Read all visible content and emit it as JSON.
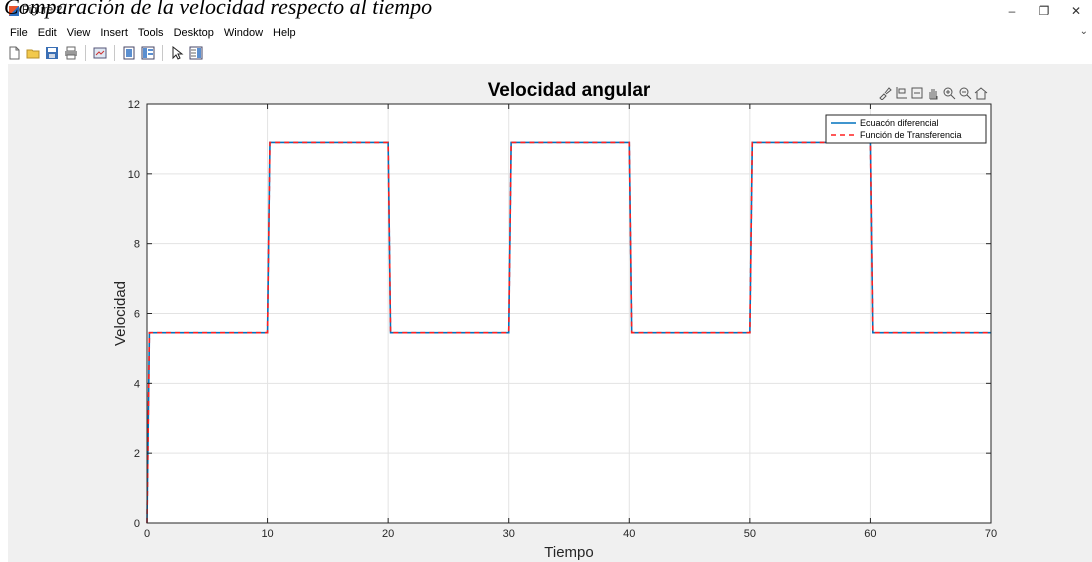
{
  "page": {
    "caption": "Comparación de la velocidad respecto al tiempo"
  },
  "window": {
    "title": "Figure 2",
    "minimize": "–",
    "restore": "❐",
    "close": "✕"
  },
  "menu": {
    "items": [
      "File",
      "Edit",
      "View",
      "Insert",
      "Tools",
      "Desktop",
      "Window",
      "Help"
    ],
    "overflow": "⌄"
  },
  "toolbar": {
    "icons": [
      "new-figure-icon",
      "open-file-icon",
      "save-icon",
      "print-icon",
      "separator",
      "link-plot-icon",
      "separator",
      "hide-plot-tools-icon",
      "show-plot-tools-icon",
      "separator",
      "edit-plot-arrow-icon",
      "open-property-inspector-icon"
    ]
  },
  "axes_toolbar": {
    "icons": [
      "brush-icon",
      "data-tips-icon",
      "restore-view-icon",
      "pan-icon",
      "zoom-in-icon",
      "zoom-out-icon",
      "home-icon"
    ]
  },
  "colors": {
    "series1": "#0072bd",
    "series2": "#ff2020",
    "axes_bg": "#ffffff",
    "figure_bg": "#f0f0f0",
    "grid": "#e3e3e3"
  },
  "chart_data": {
    "type": "line",
    "title": "Velocidad angular",
    "xlabel": "Tiempo",
    "ylabel": "Velocidad",
    "xlim": [
      0,
      70
    ],
    "ylim": [
      0,
      12
    ],
    "xticks": [
      0,
      10,
      20,
      30,
      40,
      50,
      60,
      70
    ],
    "yticks": [
      0,
      2,
      4,
      6,
      8,
      10,
      12
    ],
    "grid": true,
    "legend_position": "top-right",
    "series": [
      {
        "name": "Ecuacón diferencial",
        "style": "solid",
        "x": [
          0,
          0.2,
          10,
          10.2,
          20,
          20.2,
          30,
          30.2,
          40,
          40.2,
          50,
          50.2,
          60,
          60.2,
          70
        ],
        "y": [
          0,
          5.45,
          5.45,
          10.9,
          10.9,
          5.45,
          5.45,
          10.9,
          10.9,
          5.45,
          5.45,
          10.9,
          10.9,
          5.45,
          5.45
        ]
      },
      {
        "name": "Función de Transferencia",
        "style": "dashed",
        "x": [
          0,
          0.2,
          10,
          10.2,
          20,
          20.2,
          30,
          30.2,
          40,
          40.2,
          50,
          50.2,
          60,
          60.2,
          70
        ],
        "y": [
          0,
          5.45,
          5.45,
          10.9,
          10.9,
          5.45,
          5.45,
          10.9,
          10.9,
          5.45,
          5.45,
          10.9,
          10.9,
          5.45,
          5.45
        ]
      }
    ]
  }
}
